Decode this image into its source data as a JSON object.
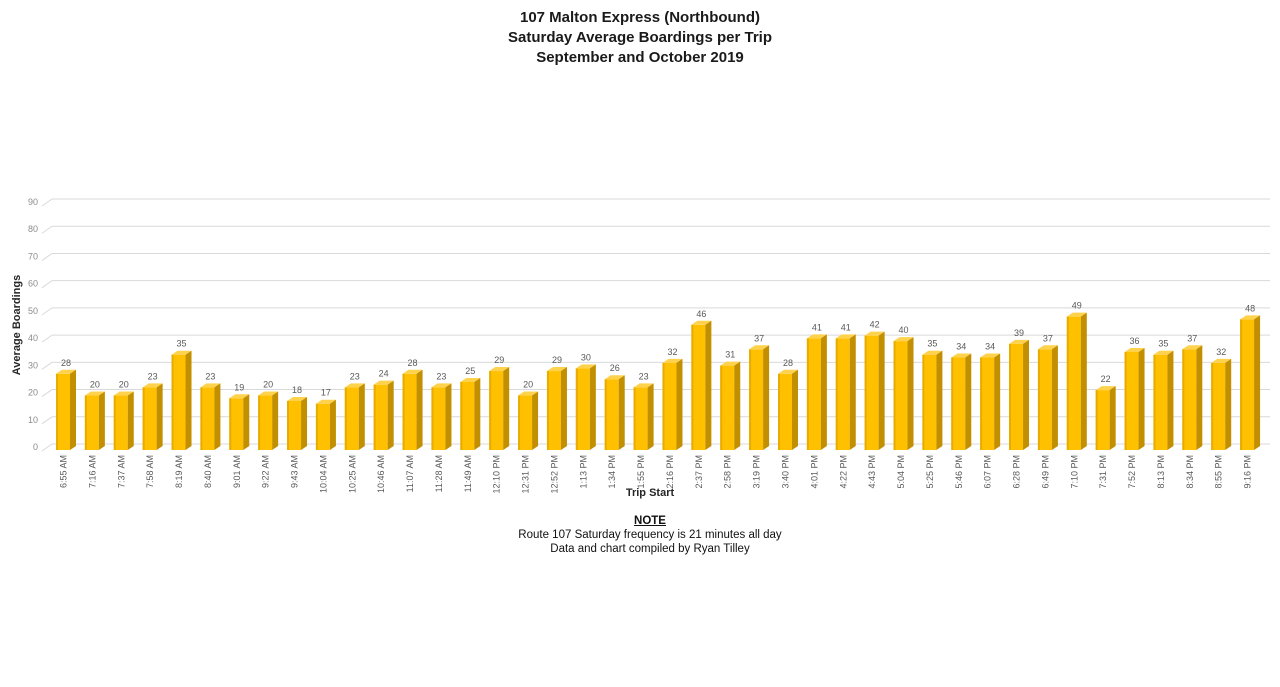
{
  "chart_data": {
    "type": "bar",
    "style": "3d-column",
    "title_lines": [
      "107 Malton Express (Northbound)",
      "Saturday Average Boardings per Trip",
      "September and October 2019"
    ],
    "xlabel": "Trip Start",
    "ylabel": "Average Boardings",
    "ylim": [
      0,
      90
    ],
    "ytick_step": 10,
    "grid": true,
    "legend": "none",
    "categories": [
      "6:55 AM",
      "7:16 AM",
      "7:37 AM",
      "7:58 AM",
      "8:19 AM",
      "8:40 AM",
      "9:01 AM",
      "9:22 AM",
      "9:43 AM",
      "10:04 AM",
      "10:25 AM",
      "10:46 AM",
      "11:07 AM",
      "11:28 AM",
      "11:49 AM",
      "12:10 PM",
      "12:31 PM",
      "12:52 PM",
      "1:13 PM",
      "1:34 PM",
      "1:55 PM",
      "2:16 PM",
      "2:37 PM",
      "2:58 PM",
      "3:19 PM",
      "3:40 PM",
      "4:01 PM",
      "4:22 PM",
      "4:43 PM",
      "5:04 PM",
      "5:25 PM",
      "5:46 PM",
      "6:07 PM",
      "6:28 PM",
      "6:49 PM",
      "7:10 PM",
      "7:31 PM",
      "7:52 PM",
      "8:13 PM",
      "8:34 PM",
      "8:55 PM",
      "9:16 PM"
    ],
    "values": [
      28,
      20,
      20,
      23,
      35,
      23,
      19,
      20,
      18,
      17,
      23,
      24,
      28,
      23,
      25,
      29,
      20,
      29,
      30,
      26,
      23,
      32,
      46,
      31,
      37,
      28,
      41,
      41,
      42,
      40,
      35,
      34,
      34,
      39,
      37,
      49,
      22,
      36,
      35,
      37,
      32,
      48
    ],
    "colors": {
      "bar_front": "#FFC000",
      "bar_edge_left": "#E8AC00",
      "bar_side": "#C28F00",
      "bar_top": "#FFD24D",
      "gridline": "#D9D9D9",
      "y_tick_label": "#8C8C8C",
      "x_tick_label": "#595959",
      "data_label": "#595959"
    }
  },
  "note": {
    "heading": "NOTE",
    "lines": [
      "Route 107 Saturday frequency is 21 minutes all day",
      "Data and chart compiled by Ryan Tilley"
    ]
  }
}
